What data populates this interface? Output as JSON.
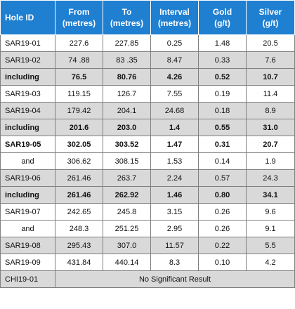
{
  "headers": {
    "hole_id": "Hole ID",
    "from_1": "From",
    "from_2": "(metres)",
    "to_1": "To",
    "to_2": "(metres)",
    "interval_1": "Interval",
    "interval_2": "(metres)",
    "gold_1": "Gold",
    "gold_2": "(g/t)",
    "silver_1": "Silver",
    "silver_2": "(g/t)"
  },
  "rows": [
    {
      "hole": "SAR19-01",
      "from": "227.6",
      "to": "227.85",
      "interval": "0.25",
      "gold": "1.48",
      "silver": "20.5"
    },
    {
      "hole": "SAR19-02",
      "from": "74 .88",
      "to": "83 .35",
      "interval": "8.47",
      "gold": "0.33",
      "silver": "7.6"
    },
    {
      "hole": "including",
      "from": "76.5",
      "to": "80.76",
      "interval": "4.26",
      "gold": "0.52",
      "silver": "10.7"
    },
    {
      "hole": "SAR19-03",
      "from": "119.15",
      "to": "126.7",
      "interval": "7.55",
      "gold": "0.19",
      "silver": "11.4"
    },
    {
      "hole": "SAR19-04",
      "from": "179.42",
      "to": "204.1",
      "interval": "24.68",
      "gold": "0.18",
      "silver": "8.9"
    },
    {
      "hole": "including",
      "from": "201.6",
      "to": "203.0",
      "interval": "1.4",
      "gold": "0.55",
      "silver": "31.0"
    },
    {
      "hole": "SAR19-05",
      "from": "302.05",
      "to": "303.52",
      "interval": "1.47",
      "gold": "0.31",
      "silver": "20.7"
    },
    {
      "hole": "and",
      "from": "306.62",
      "to": "308.15",
      "interval": "1.53",
      "gold": "0.14",
      "silver": "1.9"
    },
    {
      "hole": "SAR19-06",
      "from": "261.46",
      "to": "263.7",
      "interval": "2.24",
      "gold": "0.57",
      "silver": "24.3"
    },
    {
      "hole": "including",
      "from": "261.46",
      "to": "262.92",
      "interval": "1.46",
      "gold": "0.80",
      "silver": "34.1"
    },
    {
      "hole": "SAR19-07",
      "from": "242.65",
      "to": "245.8",
      "interval": "3.15",
      "gold": "0.26",
      "silver": "9.6"
    },
    {
      "hole": "and",
      "from": "248.3",
      "to": "251.25",
      "interval": "2.95",
      "gold": "0.26",
      "silver": "9.1"
    },
    {
      "hole": "SAR19-08",
      "from": "295.43",
      "to": "307.0",
      "interval": "11.57",
      "gold": "0.22",
      "silver": "5.5"
    },
    {
      "hole": "SAR19-09",
      "from": "431.84",
      "to": "440.14",
      "interval": "8.3",
      "gold": "0.10",
      "silver": "4.2"
    }
  ],
  "last_row": {
    "hole": "CHI19-01",
    "note": "No Significant Result"
  },
  "colors": {
    "header_bg": "#1f7fd1",
    "shade": "#d9d9d9"
  }
}
